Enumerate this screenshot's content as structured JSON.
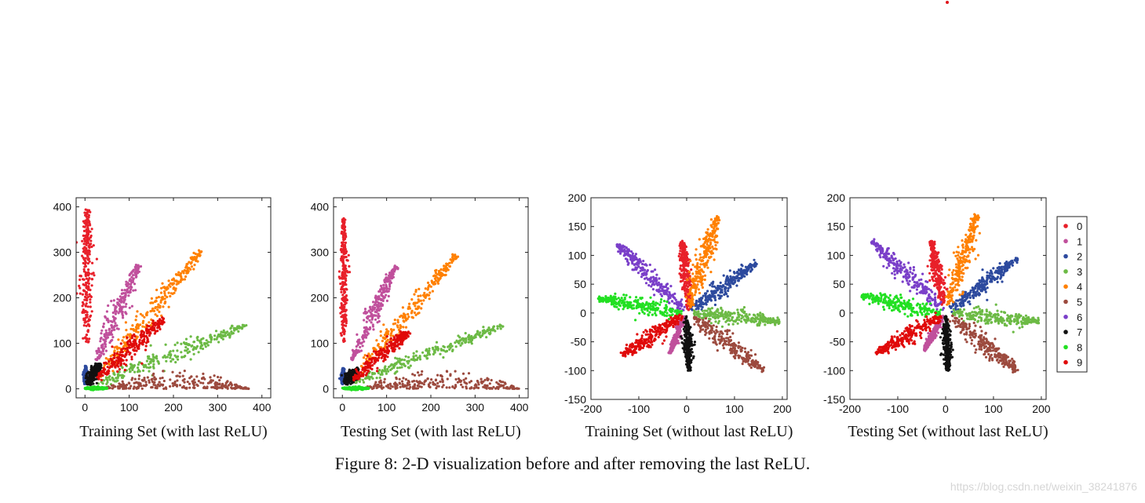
{
  "caption": "Figure 8: 2-D visualization before and after removing the last ReLU.",
  "watermark": "https://blog.csdn.net/weixin_38241876",
  "legend": {
    "labels": [
      "0",
      "1",
      "2",
      "3",
      "4",
      "5",
      "6",
      "7",
      "8",
      "9"
    ],
    "colors": [
      "#e8202a",
      "#c0509c",
      "#2d4a9e",
      "#6cba45",
      "#ff8000",
      "#9c4a3e",
      "#7a3fc9",
      "#111111",
      "#22e022",
      "#e00a0a"
    ]
  },
  "chart_data": [
    {
      "type": "scatter",
      "title": "",
      "xlabel": "Training Set (with last ReLU)",
      "ylabel": "",
      "xlim": [
        -20,
        420
      ],
      "ylim": [
        -20,
        420
      ],
      "xticks": [
        0,
        100,
        200,
        300,
        400
      ],
      "yticks": [
        0,
        100,
        200,
        300,
        400
      ],
      "grid": false,
      "series": [
        {
          "name": "0",
          "color": "#e8202a",
          "start": [
            5,
            100
          ],
          "end": [
            5,
            395
          ],
          "width": 10
        },
        {
          "name": "1",
          "color": "#c0509c",
          "start": [
            25,
            60
          ],
          "end": [
            120,
            272
          ],
          "width": 12
        },
        {
          "name": "2",
          "color": "#2d4a9e",
          "start": [
            0,
            10
          ],
          "end": [
            2,
            50
          ],
          "width": 3
        },
        {
          "name": "3",
          "color": "#6cba45",
          "start": [
            25,
            10
          ],
          "end": [
            365,
            140
          ],
          "width": 12
        },
        {
          "name": "4",
          "color": "#ff8000",
          "start": [
            30,
            30
          ],
          "end": [
            265,
            305
          ],
          "width": 14
        },
        {
          "name": "5",
          "color": "#9c4a3e",
          "start": [
            40,
            0
          ],
          "end": [
            370,
            0
          ],
          "width": 0
        },
        {
          "name": "7",
          "color": "#111111",
          "start": [
            5,
            10
          ],
          "end": [
            35,
            55
          ],
          "width": 8
        },
        {
          "name": "8",
          "color": "#22e022",
          "start": [
            0,
            1
          ],
          "end": [
            50,
            1
          ],
          "width": 2
        },
        {
          "name": "9",
          "color": "#e00a0a",
          "start": [
            25,
            20
          ],
          "end": [
            180,
            155
          ],
          "width": 14
        }
      ]
    },
    {
      "type": "scatter",
      "title": "",
      "xlabel": "Testing Set (with last ReLU)",
      "ylabel": "",
      "xlim": [
        -20,
        420
      ],
      "ylim": [
        -20,
        420
      ],
      "xticks": [
        0,
        100,
        200,
        300,
        400
      ],
      "yticks": [
        0,
        100,
        200,
        300,
        400
      ],
      "grid": false,
      "series": [
        {
          "name": "0",
          "color": "#e8202a",
          "start": [
            3,
            100
          ],
          "end": [
            3,
            375
          ],
          "width": 6
        },
        {
          "name": "1",
          "color": "#c0509c",
          "start": [
            20,
            60
          ],
          "end": [
            120,
            270
          ],
          "width": 10
        },
        {
          "name": "2",
          "color": "#2d4a9e",
          "start": [
            0,
            10
          ],
          "end": [
            2,
            45
          ],
          "width": 3
        },
        {
          "name": "3",
          "color": "#6cba45",
          "start": [
            25,
            15
          ],
          "end": [
            365,
            140
          ],
          "width": 10
        },
        {
          "name": "4",
          "color": "#ff8000",
          "start": [
            30,
            30
          ],
          "end": [
            260,
            295
          ],
          "width": 12
        },
        {
          "name": "5",
          "color": "#9c4a3e",
          "start": [
            40,
            0
          ],
          "end": [
            400,
            0
          ],
          "width": 0
        },
        {
          "name": "7",
          "color": "#111111",
          "start": [
            5,
            10
          ],
          "end": [
            35,
            45
          ],
          "width": 8
        },
        {
          "name": "8",
          "color": "#22e022",
          "start": [
            0,
            1
          ],
          "end": [
            60,
            1
          ],
          "width": 2
        },
        {
          "name": "9",
          "color": "#e00a0a",
          "start": [
            25,
            20
          ],
          "end": [
            150,
            125
          ],
          "width": 12
        }
      ]
    },
    {
      "type": "scatter",
      "title": "",
      "xlabel": "Training Set (without last ReLU)",
      "ylabel": "",
      "xlim": [
        -200,
        210
      ],
      "ylim": [
        -150,
        200
      ],
      "xticks": [
        -200,
        -100,
        0,
        100,
        200
      ],
      "yticks": [
        -150,
        -100,
        -50,
        0,
        50,
        100,
        150,
        200
      ],
      "grid": false,
      "series": [
        {
          "name": "0",
          "color": "#e8202a",
          "start": [
            5,
            5
          ],
          "end": [
            -10,
            125
          ],
          "width": 9
        },
        {
          "name": "1",
          "color": "#c0509c",
          "start": [
            -5,
            -5
          ],
          "end": [
            -35,
            -70
          ],
          "width": 5
        },
        {
          "name": "2",
          "color": "#2d4a9e",
          "start": [
            10,
            5
          ],
          "end": [
            145,
            88
          ],
          "width": 11
        },
        {
          "name": "3",
          "color": "#6cba45",
          "start": [
            15,
            0
          ],
          "end": [
            195,
            -15
          ],
          "width": 12
        },
        {
          "name": "4",
          "color": "#ff8000",
          "start": [
            5,
            10
          ],
          "end": [
            65,
            170
          ],
          "width": 12
        },
        {
          "name": "5",
          "color": "#9c4a3e",
          "start": [
            10,
            -5
          ],
          "end": [
            160,
            -100
          ],
          "width": 12
        },
        {
          "name": "6",
          "color": "#7a3fc9",
          "start": [
            -5,
            5
          ],
          "end": [
            -145,
            120
          ],
          "width": 12
        },
        {
          "name": "7",
          "color": "#111111",
          "start": [
            0,
            -5
          ],
          "end": [
            5,
            -100
          ],
          "width": 7
        },
        {
          "name": "8",
          "color": "#22e022",
          "start": [
            -10,
            0
          ],
          "end": [
            -185,
            25
          ],
          "width": 12
        },
        {
          "name": "9",
          "color": "#e00a0a",
          "start": [
            -10,
            -5
          ],
          "end": [
            -135,
            -75
          ],
          "width": 12
        }
      ]
    },
    {
      "type": "scatter",
      "title": "",
      "xlabel": "Testing Set (without last ReLU)",
      "ylabel": "",
      "xlim": [
        -200,
        210
      ],
      "ylim": [
        -150,
        200
      ],
      "xticks": [
        -200,
        -100,
        0,
        100,
        200
      ],
      "yticks": [
        -150,
        -100,
        -50,
        0,
        50,
        100,
        150,
        200
      ],
      "grid": false,
      "series": [
        {
          "name": "0",
          "color": "#e8202a",
          "start": [
            -5,
            15
          ],
          "end": [
            -30,
            125
          ],
          "width": 9
        },
        {
          "name": "1",
          "color": "#c0509c",
          "start": [
            -5,
            -5
          ],
          "end": [
            -45,
            -65
          ],
          "width": 5
        },
        {
          "name": "2",
          "color": "#2d4a9e",
          "start": [
            10,
            5
          ],
          "end": [
            150,
            95
          ],
          "width": 11
        },
        {
          "name": "3",
          "color": "#6cba45",
          "start": [
            15,
            0
          ],
          "end": [
            195,
            -15
          ],
          "width": 12
        },
        {
          "name": "4",
          "color": "#ff8000",
          "start": [
            5,
            10
          ],
          "end": [
            65,
            170
          ],
          "width": 12
        },
        {
          "name": "5",
          "color": "#9c4a3e",
          "start": [
            10,
            -5
          ],
          "end": [
            150,
            -100
          ],
          "width": 12
        },
        {
          "name": "6",
          "color": "#7a3fc9",
          "start": [
            -5,
            5
          ],
          "end": [
            -155,
            125
          ],
          "width": 12
        },
        {
          "name": "7",
          "color": "#111111",
          "start": [
            0,
            -5
          ],
          "end": [
            5,
            -100
          ],
          "width": 7
        },
        {
          "name": "8",
          "color": "#22e022",
          "start": [
            -10,
            0
          ],
          "end": [
            -175,
            30
          ],
          "width": 12
        },
        {
          "name": "9",
          "color": "#e00a0a",
          "start": [
            -10,
            -5
          ],
          "end": [
            -145,
            -70
          ],
          "width": 12
        }
      ]
    }
  ]
}
